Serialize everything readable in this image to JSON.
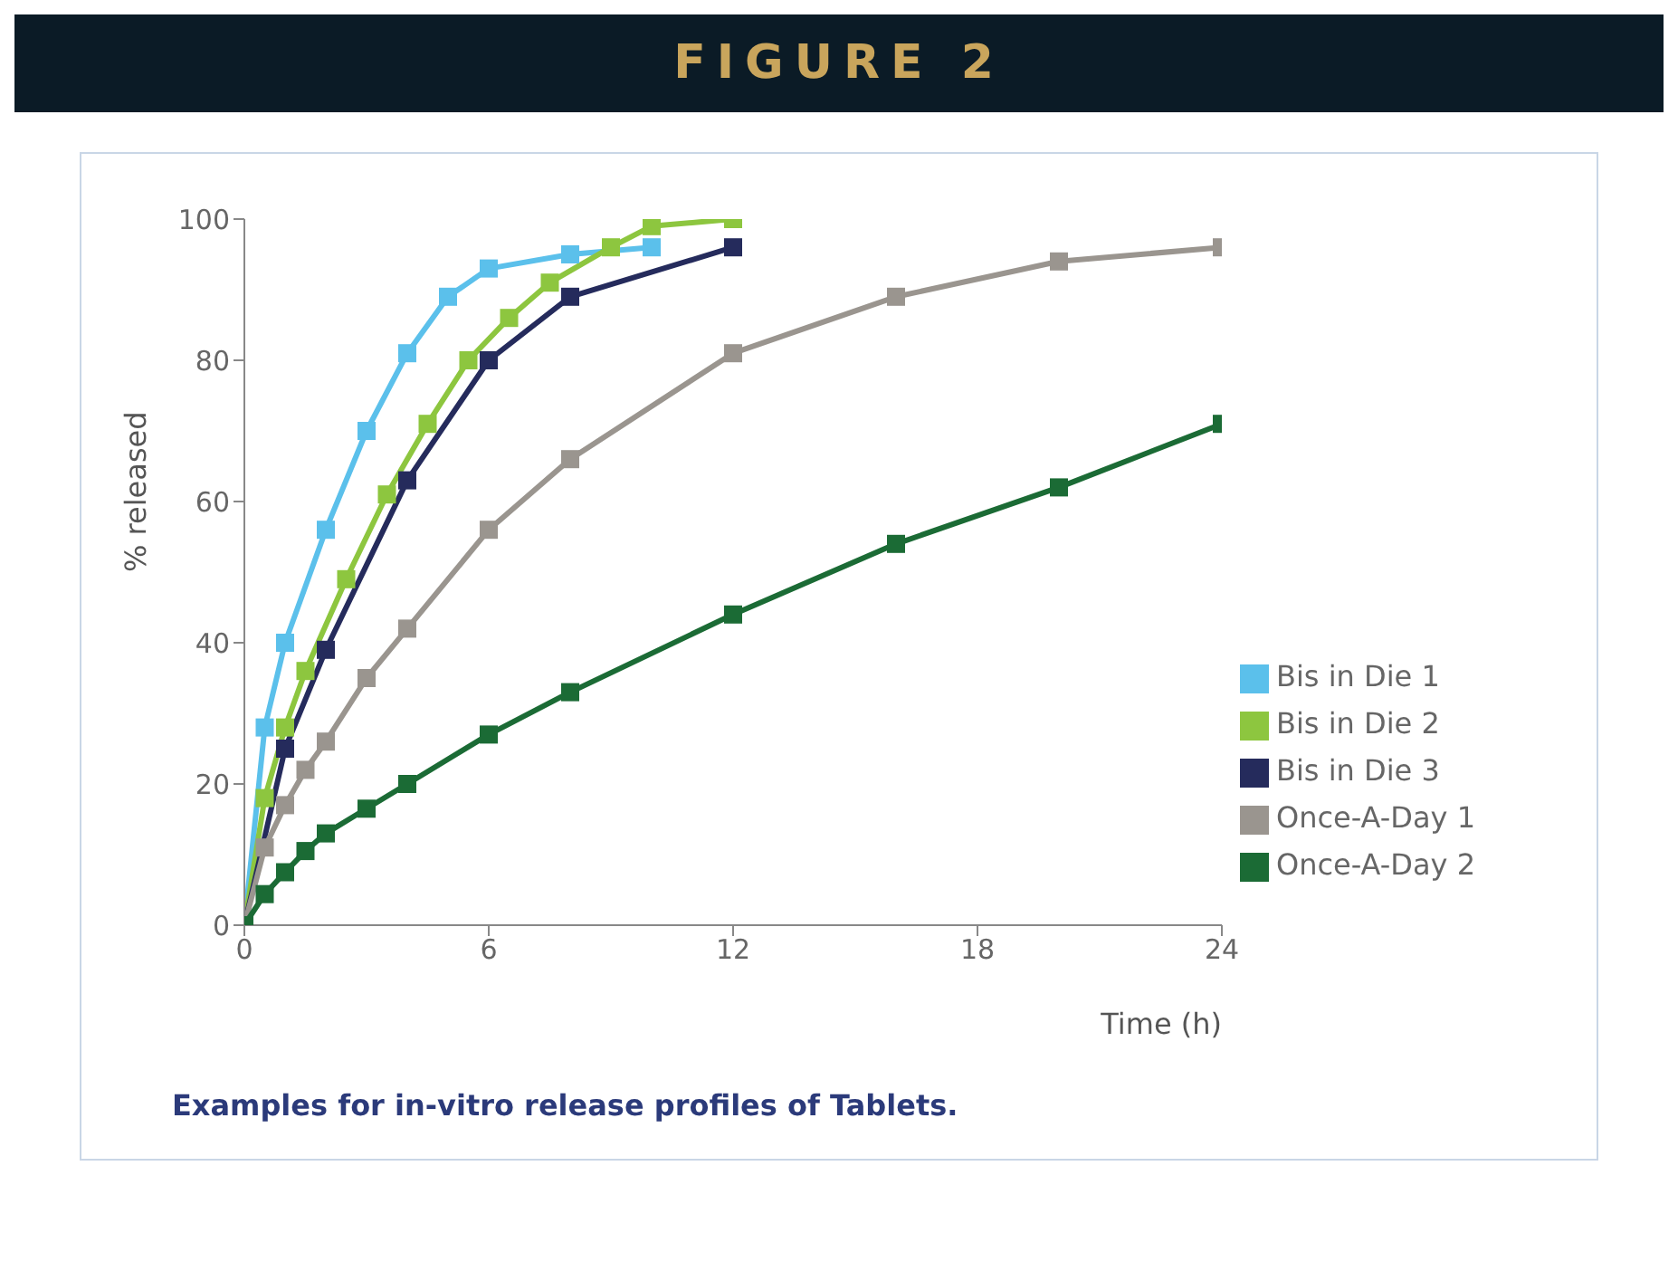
{
  "chart_data": {
    "type": "line",
    "title": "FIGURE 2",
    "ylabel": "% released",
    "xlabel": "Time (h)",
    "annotations": [
      "Examples for in-vitro release profiles of Tablets."
    ],
    "xlim": [
      0,
      24
    ],
    "xticks": [
      0,
      6,
      12,
      18,
      24
    ],
    "ylim": [
      0,
      100
    ],
    "yticks": [
      0,
      20,
      40,
      60,
      80,
      100
    ],
    "grid": false,
    "legend": "bottom right",
    "marker": "square",
    "line_style": "solid",
    "series": [
      {
        "name": "Bis in Die 1",
        "color": "#5bc0eb",
        "x": [
          0,
          0.5,
          1,
          2,
          3,
          4,
          5,
          6,
          8,
          10
        ],
        "values": [
          0,
          28,
          40,
          56,
          70,
          81,
          89,
          93,
          95,
          96
        ]
      },
      {
        "name": "Bis in Die 2",
        "color": "#8dc63f",
        "x": [
          0,
          0.5,
          1,
          1.5,
          2.5,
          3.5,
          4.5,
          5.5,
          6.5,
          7.5,
          9,
          10,
          12
        ],
        "values": [
          0,
          18,
          28,
          36,
          49,
          61,
          71,
          80,
          86,
          91,
          96,
          99,
          100
        ]
      },
      {
        "name": "Bis in Die 3",
        "color": "#252b5c",
        "x": [
          0,
          1,
          2,
          4,
          6,
          8,
          12
        ],
        "values": [
          0,
          25,
          39,
          63,
          80,
          89,
          96
        ]
      },
      {
        "name": "Once-A-Day 1",
        "color": "#9a958f",
        "x": [
          0,
          0.5,
          1,
          1.5,
          2,
          3,
          4,
          6,
          8,
          12,
          16,
          20,
          24
        ],
        "values": [
          0,
          11,
          17,
          22,
          26,
          35,
          42,
          56,
          66,
          81,
          89,
          94,
          96
        ]
      },
      {
        "name": "Once-A-Day 2",
        "color": "#1b6b35",
        "x": [
          0,
          0.5,
          1,
          1.5,
          2,
          3,
          4,
          6,
          8,
          12,
          16,
          20,
          24
        ],
        "values": [
          0,
          4.4,
          7.5,
          10.5,
          13,
          16.5,
          20,
          27,
          33,
          44,
          54,
          62,
          71
        ]
      }
    ]
  }
}
